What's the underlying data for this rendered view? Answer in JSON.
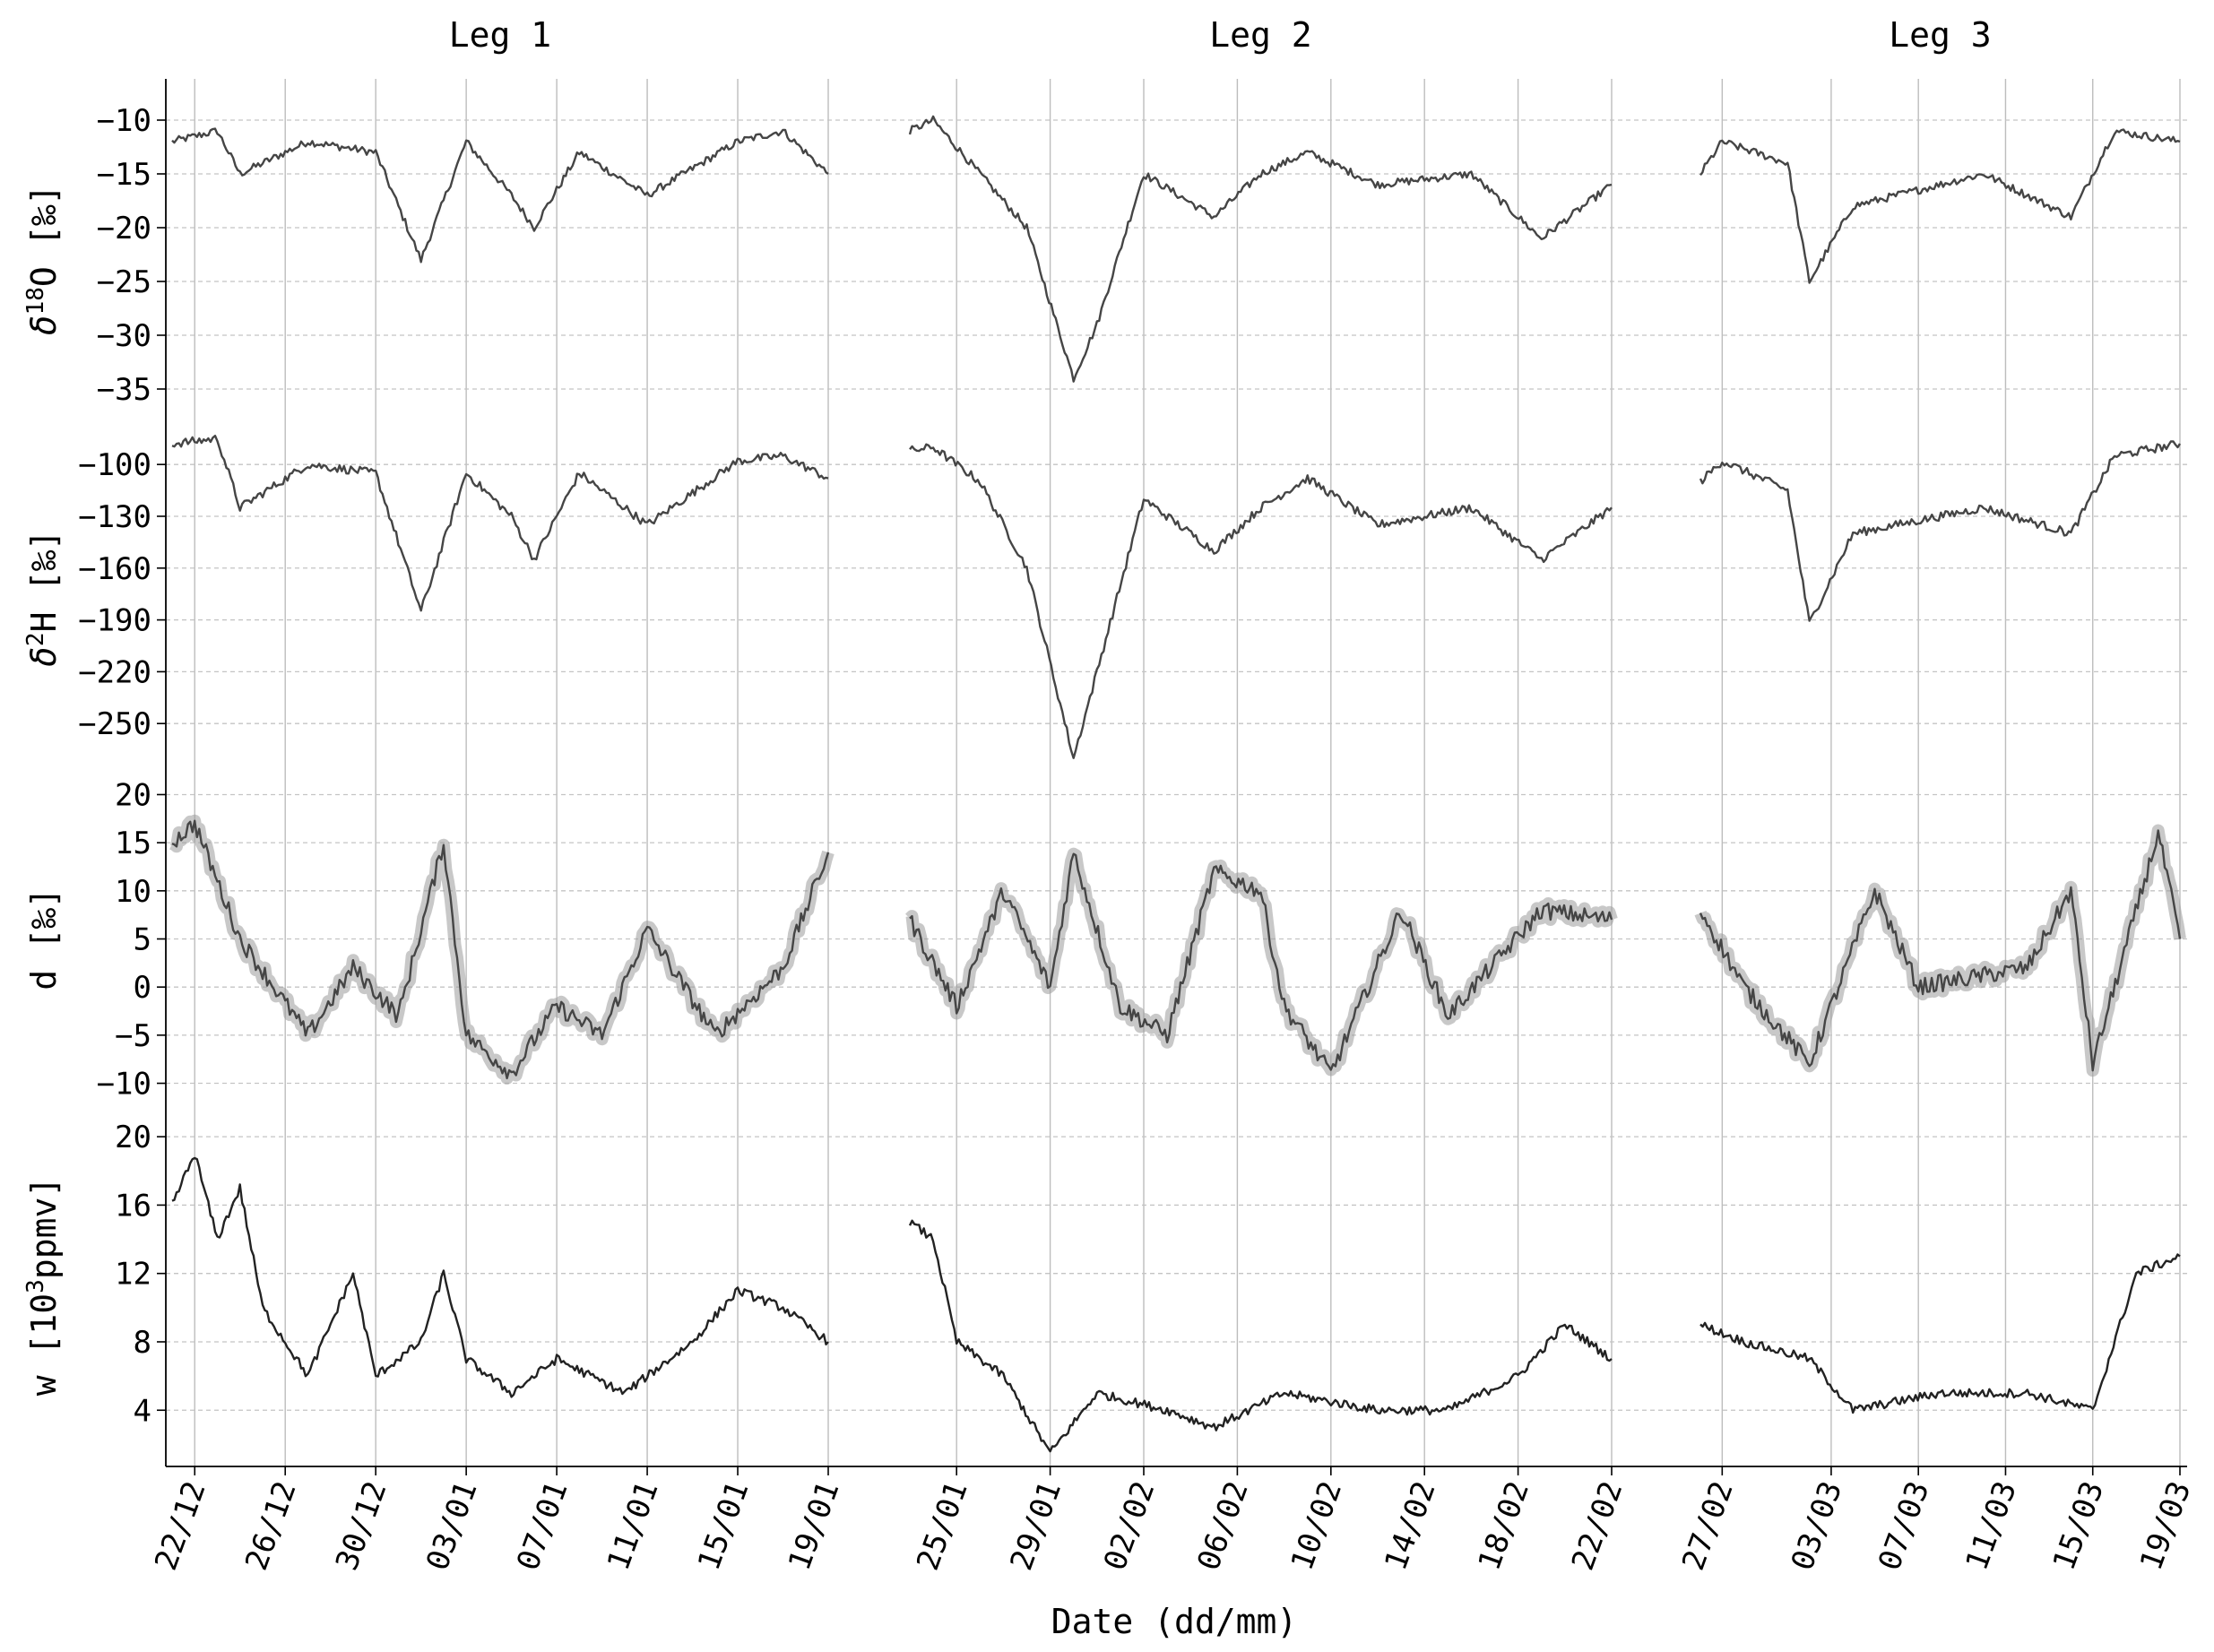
{
  "chart_data": {
    "type": "line",
    "xlabel": "Date (dd/mm)",
    "legs": [
      {
        "title": "Leg 1",
        "x_start": "2019-12-21",
        "x_end": "2020-01-19",
        "ticks": [
          "22/12",
          "26/12",
          "30/12",
          "03/01",
          "07/01",
          "11/01",
          "15/01",
          "19/01"
        ]
      },
      {
        "title": "Leg 2",
        "x_start": "2020-01-23",
        "x_end": "2020-02-22",
        "ticks": [
          "25/01",
          "29/01",
          "02/02",
          "06/02",
          "10/02",
          "14/02",
          "18/02",
          "22/02"
        ]
      },
      {
        "title": "Leg 3",
        "x_start": "2020-02-26",
        "x_end": "2020-03-19",
        "ticks": [
          "27/02",
          "03/03",
          "07/03",
          "11/03",
          "15/03",
          "19/03"
        ]
      }
    ],
    "panels": [
      {
        "id": "d18O",
        "ylabel_main": "δ",
        "ylabel_sup": "18",
        "ylabel_rest": "O [‰]",
        "yticks": [
          "-10",
          "-15",
          "-20",
          "-25",
          "-30",
          "-35"
        ],
        "ylim": [
          -38,
          -8
        ],
        "approx_points": [
          [
            [
              "2019-12-21",
              -12
            ],
            [
              "2019-12-23",
              -11
            ],
            [
              "2019-12-24",
              -15
            ],
            [
              "2019-12-27",
              -12
            ],
            [
              "2019-12-30",
              -13
            ],
            [
              "2020-01-01",
              -23
            ],
            [
              "2020-01-03",
              -12
            ],
            [
              "2020-01-05",
              -17
            ],
            [
              "2020-01-06",
              -20
            ],
            [
              "2020-01-08",
              -13
            ],
            [
              "2020-01-11",
              -17
            ],
            [
              "2020-01-15",
              -12
            ],
            [
              "2020-01-17",
              -11
            ],
            [
              "2020-01-19",
              -15
            ]
          ],
          [
            [
              "2020-01-23",
              -11
            ],
            [
              "2020-01-24",
              -10
            ],
            [
              "2020-01-26",
              -15
            ],
            [
              "2020-01-28",
              -20
            ],
            [
              "2020-01-30",
              -34
            ],
            [
              "2020-01-31",
              -29
            ],
            [
              "2020-02-02",
              -15
            ],
            [
              "2020-02-05",
              -19
            ],
            [
              "2020-02-07",
              -15
            ],
            [
              "2020-02-09",
              -13
            ],
            [
              "2020-02-12",
              -16
            ],
            [
              "2020-02-16",
              -15
            ],
            [
              "2020-02-19",
              -21
            ],
            [
              "2020-02-22",
              -16
            ]
          ],
          [
            [
              "2020-02-26",
              -15
            ],
            [
              "2020-02-27",
              -12
            ],
            [
              "2020-03-01",
              -14
            ],
            [
              "2020-03-02",
              -25
            ],
            [
              "2020-03-04",
              -18
            ],
            [
              "2020-03-10",
              -15
            ],
            [
              "2020-03-14",
              -19
            ],
            [
              "2020-03-16",
              -11
            ],
            [
              "2020-03-19",
              -12
            ]
          ]
        ]
      },
      {
        "id": "d2H",
        "ylabel_main": "δ",
        "ylabel_sup": "2",
        "ylabel_rest": "H [‰]",
        "yticks": [
          "-100",
          "-130",
          "-160",
          "-190",
          "-220",
          "-250"
        ],
        "ylim": [
          -280,
          -75
        ],
        "approx_points": [
          [
            [
              "2019-12-21",
              -88
            ],
            [
              "2019-12-23",
              -85
            ],
            [
              "2019-12-24",
              -125
            ],
            [
              "2019-12-27",
              -100
            ],
            [
              "2019-12-30",
              -105
            ],
            [
              "2020-01-01",
              -185
            ],
            [
              "2020-01-03",
              -105
            ],
            [
              "2020-01-05",
              -130
            ],
            [
              "2020-01-06",
              -155
            ],
            [
              "2020-01-08",
              -105
            ],
            [
              "2020-01-11",
              -135
            ],
            [
              "2020-01-15",
              -98
            ],
            [
              "2020-01-17",
              -95
            ],
            [
              "2020-01-19",
              -108
            ]
          ],
          [
            [
              "2020-01-23",
              -92
            ],
            [
              "2020-01-24",
              -90
            ],
            [
              "2020-01-26",
              -110
            ],
            [
              "2020-01-28",
              -160
            ],
            [
              "2020-01-30",
              -270
            ],
            [
              "2020-01-31",
              -220
            ],
            [
              "2020-02-02",
              -120
            ],
            [
              "2020-02-05",
              -150
            ],
            [
              "2020-02-07",
              -125
            ],
            [
              "2020-02-09",
              -108
            ],
            [
              "2020-02-12",
              -135
            ],
            [
              "2020-02-16",
              -125
            ],
            [
              "2020-02-19",
              -155
            ],
            [
              "2020-02-22",
              -125
            ]
          ],
          [
            [
              "2020-02-26",
              -110
            ],
            [
              "2020-02-27",
              -98
            ],
            [
              "2020-03-01",
              -115
            ],
            [
              "2020-03-02",
              -192
            ],
            [
              "2020-03-04",
              -140
            ],
            [
              "2020-03-10",
              -125
            ],
            [
              "2020-03-14",
              -140
            ],
            [
              "2020-03-16",
              -95
            ],
            [
              "2020-03-19",
              -88
            ]
          ]
        ]
      },
      {
        "id": "d",
        "ylabel_main": "d [‰]",
        "ylabel_sup": "",
        "ylabel_rest": "",
        "yticks": [
          "20",
          "15",
          "10",
          "5",
          "0",
          "-5",
          "-10"
        ],
        "ylim": [
          -12,
          22
        ],
        "approx_points": [
          [
            [
              "2019-12-21",
              15
            ],
            [
              "2019-12-22",
              17
            ],
            [
              "2019-12-24",
              5
            ],
            [
              "2019-12-27",
              -5
            ],
            [
              "2019-12-29",
              2
            ],
            [
              "2019-12-31",
              -3
            ],
            [
              "2020-01-02",
              15
            ],
            [
              "2020-01-03",
              -5
            ],
            [
              "2020-01-05",
              -9
            ],
            [
              "2020-01-07",
              -2
            ],
            [
              "2020-01-09",
              -5
            ],
            [
              "2020-01-11",
              6
            ],
            [
              "2020-01-14",
              -5
            ],
            [
              "2020-01-17",
              2
            ],
            [
              "2020-01-19",
              14
            ]
          ],
          [
            [
              "2020-01-23",
              7
            ],
            [
              "2020-01-25",
              -2
            ],
            [
              "2020-01-27",
              10
            ],
            [
              "2020-01-29",
              0
            ],
            [
              "2020-01-30",
              14
            ],
            [
              "2020-02-01",
              -2
            ],
            [
              "2020-02-03",
              -5
            ],
            [
              "2020-02-05",
              12
            ],
            [
              "2020-02-07",
              10
            ],
            [
              "2020-02-08",
              -2
            ],
            [
              "2020-02-10",
              -9
            ],
            [
              "2020-02-13",
              8
            ],
            [
              "2020-02-15",
              -3
            ],
            [
              "2020-02-19",
              8
            ],
            [
              "2020-02-22",
              7
            ]
          ],
          [
            [
              "2020-02-26",
              8
            ],
            [
              "2020-02-28",
              0
            ],
            [
              "2020-03-02",
              -8
            ],
            [
              "2020-03-05",
              10
            ],
            [
              "2020-03-07",
              0
            ],
            [
              "2020-03-12",
              2
            ],
            [
              "2020-03-14",
              10
            ],
            [
              "2020-03-15",
              -8
            ],
            [
              "2020-03-18",
              16
            ],
            [
              "2020-03-19",
              5
            ]
          ]
        ]
      },
      {
        "id": "w",
        "ylabel_main": "w [10",
        "ylabel_sup": "3",
        "ylabel_rest": "ppmv]",
        "yticks": [
          "20",
          "16",
          "12",
          "8",
          "4"
        ],
        "ylim": [
          0.5,
          22
        ],
        "approx_points": [
          [
            [
              "2019-12-21",
              16
            ],
            [
              "2019-12-22",
              19
            ],
            [
              "2019-12-23",
              14
            ],
            [
              "2019-12-24",
              17
            ],
            [
              "2019-12-25",
              10
            ],
            [
              "2019-12-27",
              6
            ],
            [
              "2019-12-29",
              12
            ],
            [
              "2019-12-30",
              6
            ],
            [
              "2020-01-01",
              8
            ],
            [
              "2020-01-02",
              12
            ],
            [
              "2020-01-03",
              7
            ],
            [
              "2020-01-05",
              5
            ],
            [
              "2020-01-07",
              7
            ],
            [
              "2020-01-10",
              5
            ],
            [
              "2020-01-13",
              8
            ],
            [
              "2020-01-15",
              11
            ],
            [
              "2020-01-17",
              10
            ],
            [
              "2020-01-19",
              8
            ]
          ],
          [
            [
              "2020-01-23",
              15
            ],
            [
              "2020-01-24",
              14
            ],
            [
              "2020-01-25",
              8
            ],
            [
              "2020-01-27",
              6
            ],
            [
              "2020-01-29",
              1.5
            ],
            [
              "2020-01-31",
              5
            ],
            [
              "2020-02-03",
              4
            ],
            [
              "2020-02-05",
              3
            ],
            [
              "2020-02-08",
              5
            ],
            [
              "2020-02-12",
              4
            ],
            [
              "2020-02-15",
              4
            ],
            [
              "2020-02-18",
              6
            ],
            [
              "2020-02-20",
              9
            ],
            [
              "2020-02-22",
              7
            ]
          ],
          [
            [
              "2020-02-26",
              9
            ],
            [
              "2020-02-28",
              8
            ],
            [
              "2020-03-02",
              7
            ],
            [
              "2020-03-04",
              4
            ],
            [
              "2020-03-08",
              5
            ],
            [
              "2020-03-12",
              5
            ],
            [
              "2020-03-15",
              4
            ],
            [
              "2020-03-17",
              12
            ],
            [
              "2020-03-19",
              13
            ]
          ]
        ]
      }
    ]
  }
}
